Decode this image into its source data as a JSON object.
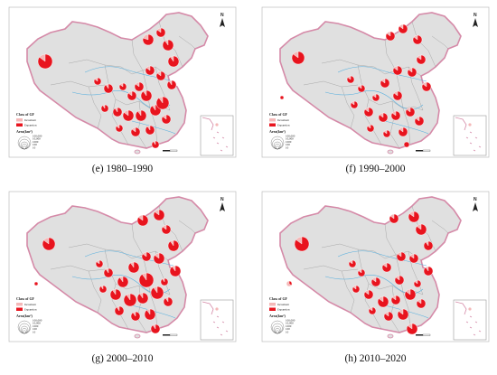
{
  "figure": {
    "panels": [
      {
        "id": "e",
        "caption": "(e) 1980–1990"
      },
      {
        "id": "f",
        "caption": "(f) 1990–2000"
      },
      {
        "id": "g",
        "caption": "(g) 2000–2010"
      },
      {
        "id": "h",
        "caption": "(h) 2010–2020"
      }
    ],
    "legend": {
      "title": "Class of GF",
      "classes": [
        "Increment",
        "Expansion"
      ],
      "area_title": "Area(km²)",
      "area_values": [
        "100,000",
        "10,000",
        "1000",
        "100",
        "10"
      ]
    },
    "north_label": "N",
    "colors": {
      "land": "#e0e0e0",
      "border": "#d58aa8",
      "province_line": "#9a9a9a",
      "river": "#5ab0de",
      "expansion": "#e8141e",
      "increment": "#f4b8b8"
    }
  }
}
